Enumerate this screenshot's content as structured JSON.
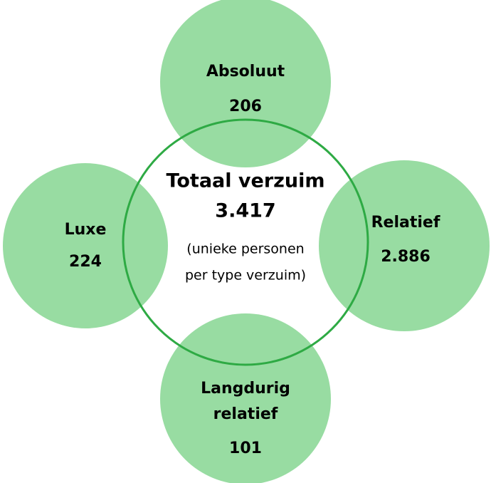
{
  "center": {
    "title": "Totaal verzuim",
    "value": "3.417",
    "note": [
      "(unieke personen",
      "per type verzuim)"
    ]
  },
  "nodes": [
    {
      "label": [
        "Absoluut"
      ],
      "value": "206"
    },
    {
      "label": [
        "Relatief"
      ],
      "value": "2.886"
    },
    {
      "label": [
        "Langdurig",
        "relatief"
      ],
      "value": "101"
    },
    {
      "label": [
        "Luxe"
      ],
      "value": "224"
    }
  ]
}
